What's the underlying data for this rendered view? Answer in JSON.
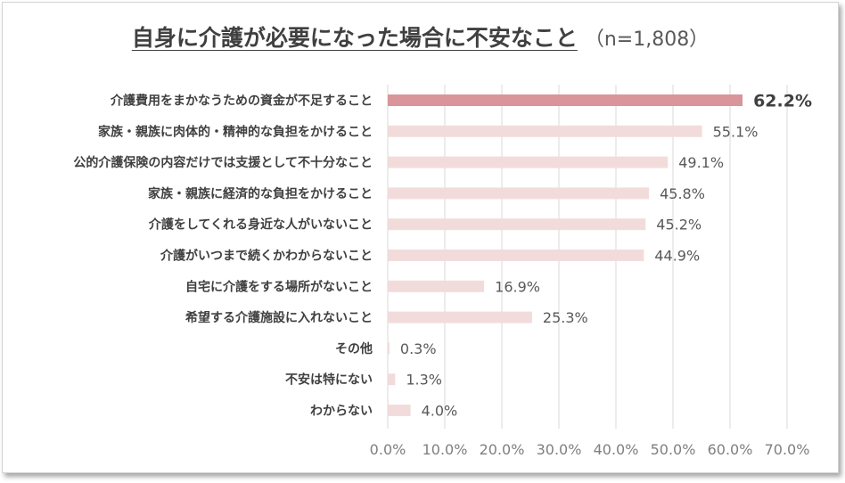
{
  "chart_data": {
    "type": "bar",
    "orientation": "horizontal",
    "title": "自身に介護が必要になった場合に不安なこと",
    "subtitle": "（n=1,808）",
    "categories": [
      "介護費用をまかなうための資金が不足すること",
      "家族・親族に肉体的・精神的な負担をかけること",
      "公的介護保険の内容だけでは支援として不十分なこと",
      "家族・親族に経済的な負担をかけること",
      "介護をしてくれる身近な人がいないこと",
      "介護がいつまで続くかわからないこと",
      "自宅に介護をする場所がないこと",
      "希望する介護施設に入れないこと",
      "その他",
      "不安は特にない",
      "わからない"
    ],
    "values": [
      62.2,
      55.1,
      49.1,
      45.8,
      45.2,
      44.9,
      16.9,
      25.3,
      0.3,
      1.3,
      4.0
    ],
    "value_labels": [
      "62.2%",
      "55.1%",
      "49.1%",
      "45.8%",
      "45.2%",
      "44.9%",
      "16.9%",
      "25.3%",
      "0.3%",
      "1.3%",
      "4.0%"
    ],
    "x_ticks": [
      "0.0%",
      "10.0%",
      "20.0%",
      "30.0%",
      "40.0%",
      "50.0%",
      "60.0%",
      "70.0%"
    ],
    "xlim": [
      0,
      70
    ],
    "grid": true,
    "highlight_index": 0,
    "colors": {
      "highlight": "#d9959a",
      "bar": "#f2dcdb",
      "grid": "#d9d9d9"
    }
  }
}
